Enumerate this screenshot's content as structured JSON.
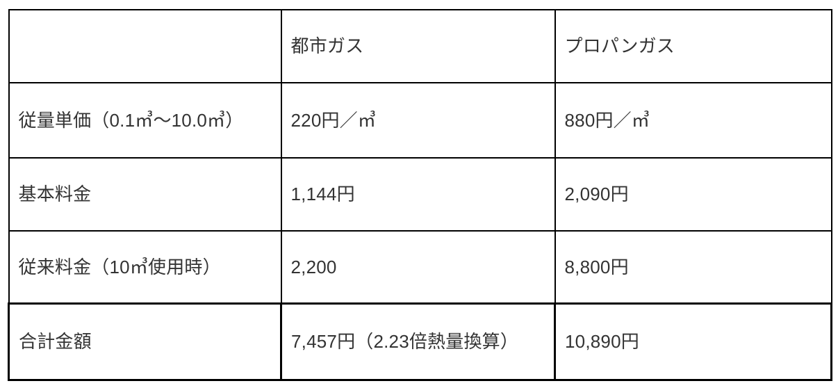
{
  "table": {
    "header": [
      "",
      "都市ガス",
      "プロパンガス"
    ],
    "rows": [
      {
        "cells": [
          "従量単価（0.1㎥〜10.0㎥）",
          "220円／㎥",
          "880円／㎥"
        ],
        "emphasized": false
      },
      {
        "cells": [
          "基本料金",
          "1,144円",
          "2,090円"
        ],
        "emphasized": false
      },
      {
        "cells": [
          "従来料金（10㎥使用時）",
          "2,200",
          "8,800円"
        ],
        "emphasized": false
      },
      {
        "cells": [
          "合計金額",
          "7,457円（2.23倍熱量換算）",
          "10,890円"
        ],
        "emphasized": true
      }
    ]
  },
  "colors": {
    "border": "#000000",
    "text": "#333333",
    "background": "#ffffff"
  }
}
